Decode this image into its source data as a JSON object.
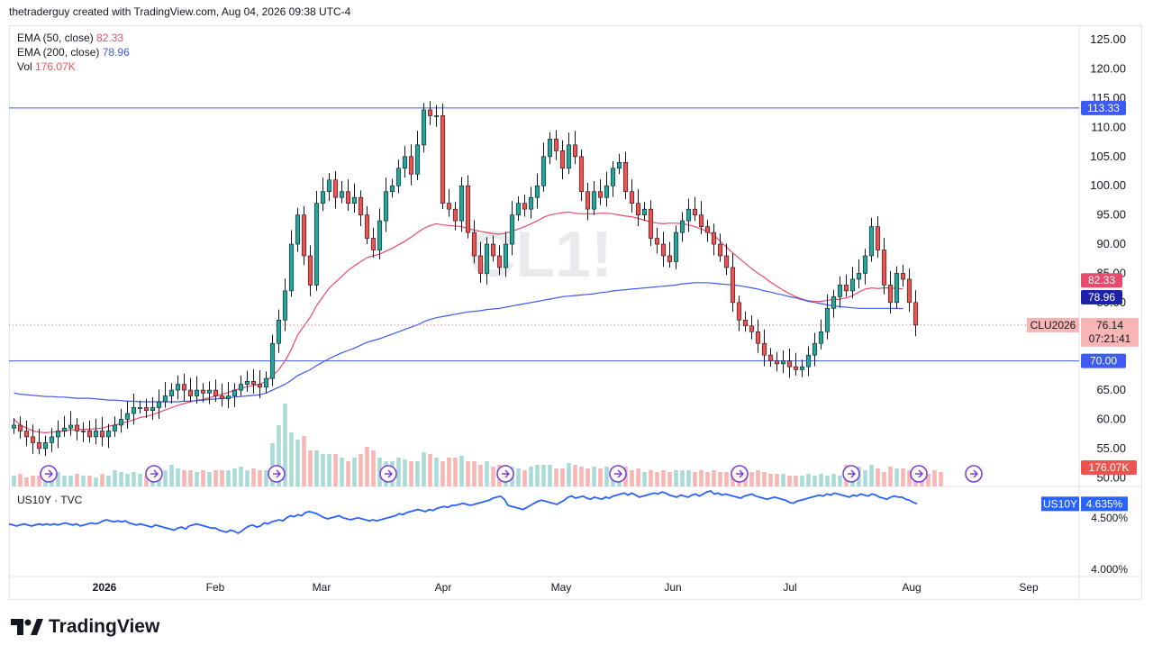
{
  "header": {
    "text": "thetraderguy created with TradingView.com, Aug 04, 2026 09:38 UTC-4"
  },
  "legend": {
    "ema50_label": "EMA (50, close)",
    "ema50_value": "82.33",
    "ema200_label": "EMA (200, close)",
    "ema200_value": "78.96",
    "vol_label": "Vol",
    "vol_value": "176.07K"
  },
  "watermark": "CL1!",
  "us10y_legend": "US10Y · TVC",
  "colors": {
    "up": "#26a69a",
    "down": "#ef5350",
    "ema50": "#e84b6d",
    "ema200": "#3d5af1",
    "hline": "#3d5af1",
    "us10y": "#2962ff"
  },
  "chart_data": [
    {
      "type": "candlestick",
      "symbol": "CLU2026",
      "price_axis_ticks": [
        "125.00",
        "120.00",
        "115.00",
        "110.00",
        "105.00",
        "100.00",
        "95.00",
        "90.00",
        "85.00",
        "80.00",
        "75.00",
        "70.00",
        "65.00",
        "60.00",
        "55.00",
        "50.00"
      ],
      "ylim": [
        48.5,
        127.5
      ],
      "time_axis_labels": [
        "2026",
        "Feb",
        "Mar",
        "Apr",
        "May",
        "Jun",
        "Jul",
        "Aug",
        "Sep"
      ],
      "horizontal_lines": [
        113.33,
        70.0
      ],
      "price_labels": {
        "hline_top": "113.33",
        "hline_bottom": "70.00",
        "ema50": "82.33",
        "ema200": "78.96",
        "last_symbol": "CLU2026",
        "last_price": "76.14",
        "countdown": "07:21:41",
        "volume": "176.07K"
      },
      "last_price": 76.14,
      "closes": [
        59,
        58,
        57,
        56,
        55,
        56,
        57,
        58,
        58.5,
        59,
        58,
        58,
        57,
        58,
        57,
        58,
        59,
        60,
        61,
        62,
        62,
        61.5,
        62,
        63,
        64,
        65,
        66,
        65,
        64,
        65,
        64.5,
        65,
        64,
        63.5,
        64,
        65,
        66,
        66.5,
        66,
        65.5,
        67,
        73,
        77,
        82,
        90,
        95,
        88,
        83,
        97,
        99,
        101,
        98,
        99,
        97,
        98,
        95,
        91,
        89,
        94,
        99,
        100,
        103,
        105,
        102,
        107,
        113,
        112,
        112,
        97,
        96,
        94,
        100,
        92,
        88,
        85,
        90,
        88,
        86,
        90,
        95,
        97,
        96,
        98,
        100,
        105,
        108,
        106,
        103,
        107,
        105,
        99,
        96,
        99,
        98,
        100,
        103,
        104,
        99,
        97,
        95,
        96,
        91,
        90,
        88,
        87,
        92,
        94,
        96,
        95,
        93,
        92,
        90,
        88,
        86,
        80,
        77,
        76,
        75,
        73,
        71,
        70,
        69.5,
        70,
        69,
        68.5,
        69,
        71,
        73,
        75,
        79,
        81,
        83,
        82,
        84,
        85,
        88,
        93,
        89,
        83,
        80,
        85,
        84,
        80,
        76.14
      ],
      "ema50": [
        60,
        59,
        58.5,
        58,
        57.8,
        57.7,
        57.8,
        57.9,
        58,
        58.2,
        58.2,
        58.3,
        58.3,
        58.4,
        58.5,
        58.8,
        59,
        59.3,
        59.6,
        59.9,
        60.3,
        60.5,
        60.8,
        61.2,
        61.6,
        62,
        62.4,
        62.7,
        63,
        63.3,
        63.4,
        63.7,
        64,
        64.3,
        64.6,
        65,
        65.3,
        65.6,
        65.8,
        66,
        66.5,
        67.5,
        68.5,
        70,
        72,
        74.5,
        76,
        77.5,
        79.5,
        81,
        82.5,
        83.5,
        84.5,
        85.5,
        86.3,
        87,
        87.7,
        88,
        88.3,
        88.8,
        89.3,
        89.9,
        90.5,
        91.2,
        92,
        92.7,
        93.2,
        93.5,
        93.3,
        93.2,
        93.1,
        93,
        92.7,
        92.4,
        92.2,
        92,
        91.8,
        91.7,
        91.9,
        92.2,
        92.6,
        93,
        93.5,
        94,
        94.6,
        95,
        95.2,
        95.4,
        95.5,
        95.3,
        95.2,
        95.2,
        95.2,
        95.3,
        95.3,
        95.2,
        95,
        94.8,
        94.7,
        94.4,
        94.1,
        93.8,
        93.6,
        93.5,
        93.6,
        93.6,
        93.5,
        93.3,
        93,
        92.6,
        92.2,
        91.5,
        90.5,
        89.5,
        88.5,
        87.6,
        86.7,
        85.8,
        85,
        84.3,
        83.5,
        82.8,
        82.1,
        81.5,
        81,
        80.6,
        80.3,
        80.2,
        80.2,
        80.4,
        80.5,
        80.6,
        80.8,
        81.2,
        81.8,
        82.3,
        82.5,
        82.4,
        82.5,
        82.5,
        82.4,
        82.33
      ],
      "ema200": [
        64.5,
        64.3,
        64.2,
        64.1,
        64,
        63.9,
        63.9,
        63.8,
        63.8,
        63.7,
        63.6,
        63.6,
        63.6,
        63.5,
        63.4,
        63.3,
        63.3,
        63.2,
        63.1,
        63.1,
        63,
        63,
        63,
        63,
        63,
        63,
        63,
        63.1,
        63.1,
        63.2,
        63.3,
        63.4,
        63.5,
        63.6,
        63.7,
        63.8,
        63.9,
        64,
        64.1,
        64.2,
        64.5,
        65,
        65.5,
        66,
        66.7,
        67.5,
        68,
        68.5,
        69.2,
        69.8,
        70.4,
        70.9,
        71.4,
        71.8,
        72.2,
        72.7,
        73.2,
        73.5,
        73.8,
        74.2,
        74.6,
        75,
        75.4,
        75.8,
        76.2,
        76.7,
        77.1,
        77.4,
        77.6,
        77.8,
        78,
        78.2,
        78.4,
        78.5,
        78.6,
        78.8,
        78.9,
        79,
        79.2,
        79.4,
        79.6,
        79.8,
        80,
        80.2,
        80.4,
        80.6,
        80.8,
        81,
        81.1,
        81.2,
        81.3,
        81.4,
        81.5,
        81.7,
        81.8,
        82,
        82.1,
        82.2,
        82.3,
        82.4,
        82.5,
        82.6,
        82.7,
        82.8,
        82.9,
        83,
        83.2,
        83.3,
        83.4,
        83.4,
        83.4,
        83.3,
        83.2,
        83.1,
        83,
        82.9,
        82.7,
        82.5,
        82.3,
        82,
        81.8,
        81.5,
        81.3,
        81,
        80.8,
        80.5,
        80.2,
        80,
        79.8,
        79.6,
        79.4,
        79.3,
        79.2,
        79.1,
        79,
        79,
        79,
        79,
        79,
        79,
        79,
        78.96
      ],
      "volume_relative": [
        0.3,
        0.35,
        0.25,
        0.3,
        0.3,
        0.25,
        0.35,
        0.4,
        0.3,
        0.3,
        0.35,
        0.3,
        0.3,
        0.25,
        0.35,
        0.3,
        0.45,
        0.4,
        0.35,
        0.4,
        0.35,
        0.3,
        0.3,
        0.4,
        0.45,
        0.6,
        0.5,
        0.45,
        0.45,
        0.4,
        0.45,
        0.4,
        0.45,
        0.45,
        0.45,
        0.5,
        0.55,
        0.45,
        0.5,
        0.45,
        0.45,
        1.2,
        1.7,
        2.3,
        1.5,
        1.3,
        1.4,
        1.0,
        1.0,
        0.9,
        0.9,
        0.9,
        0.8,
        0.7,
        0.8,
        0.9,
        1.1,
        1.0,
        0.8,
        0.7,
        0.7,
        0.8,
        0.75,
        0.7,
        0.7,
        0.95,
        0.9,
        0.8,
        0.7,
        0.8,
        0.8,
        0.85,
        0.7,
        0.7,
        0.6,
        0.7,
        0.55,
        0.6,
        0.6,
        0.55,
        0.5,
        0.45,
        0.55,
        0.6,
        0.6,
        0.6,
        0.5,
        0.5,
        0.65,
        0.6,
        0.55,
        0.5,
        0.55,
        0.5,
        0.55,
        0.5,
        0.5,
        0.55,
        0.45,
        0.5,
        0.4,
        0.45,
        0.4,
        0.45,
        0.4,
        0.45,
        0.45,
        0.45,
        0.4,
        0.45,
        0.4,
        0.45,
        0.4,
        0.4,
        0.45,
        0.4,
        0.4,
        0.4,
        0.45,
        0.4,
        0.35,
        0.35,
        0.35,
        0.3,
        0.3,
        0.3,
        0.35,
        0.3,
        0.35,
        0.3,
        0.35,
        0.3,
        0.6,
        0.5,
        0.55,
        0.45,
        0.6,
        0.5,
        0.4,
        0.55,
        0.5,
        0.5,
        0.45,
        0.5,
        0.4,
        0.35,
        0.45,
        0.4
      ]
    },
    {
      "type": "line",
      "symbol": "US10Y",
      "price_axis_ticks": [
        "4.500%",
        "4.000%"
      ],
      "ylim": [
        3.93,
        4.76
      ],
      "last_value_label": "4.635%",
      "values": [
        4.44,
        4.43,
        4.42,
        4.43,
        4.44,
        4.43,
        4.42,
        4.43,
        4.44,
        4.43,
        4.44,
        4.43,
        4.44,
        4.43,
        4.44,
        4.45,
        4.44,
        4.43,
        4.44,
        4.42,
        4.43,
        4.44,
        4.45,
        4.44,
        4.45,
        4.47,
        4.48,
        4.47,
        4.46,
        4.47,
        4.46,
        4.47,
        4.45,
        4.44,
        4.43,
        4.44,
        4.43,
        4.42,
        4.41,
        4.43,
        4.42,
        4.41,
        4.4,
        4.39,
        4.38,
        4.4,
        4.41,
        4.39,
        4.42,
        4.43,
        4.44,
        4.43,
        4.42,
        4.41,
        4.4,
        4.4,
        4.38,
        4.37,
        4.36,
        4.38,
        4.37,
        4.35,
        4.37,
        4.4,
        4.42,
        4.43,
        4.41,
        4.42,
        4.45,
        4.44,
        4.46,
        4.47,
        4.48,
        4.47,
        4.5,
        4.52,
        4.51,
        4.53,
        4.52,
        4.55,
        4.56,
        4.55,
        4.54,
        4.52,
        4.5,
        4.49,
        4.5,
        4.51,
        4.52,
        4.5,
        4.49,
        4.48,
        4.49,
        4.5,
        4.49,
        4.48,
        4.47,
        4.48,
        4.47,
        4.48,
        4.49,
        4.5,
        4.51,
        4.52,
        4.54,
        4.53,
        4.55,
        4.56,
        4.57,
        4.58,
        4.57,
        4.56,
        4.58,
        4.57,
        4.59,
        4.6,
        4.61,
        4.6,
        4.62,
        4.62,
        4.63,
        4.64,
        4.63,
        4.62,
        4.63,
        4.64,
        4.65,
        4.66,
        4.67,
        4.69,
        4.7,
        4.71,
        4.68,
        4.62,
        4.61,
        4.6,
        4.59,
        4.58,
        4.6,
        4.62,
        4.64,
        4.66,
        4.67,
        4.66,
        4.65,
        4.64,
        4.63,
        4.65,
        4.67,
        4.7,
        4.71,
        4.69,
        4.7,
        4.71,
        4.69,
        4.68,
        4.7,
        4.69,
        4.68,
        4.7,
        4.69,
        4.71,
        4.72,
        4.73,
        4.74,
        4.72,
        4.74,
        4.72,
        4.7,
        4.71,
        4.72,
        4.73,
        4.74,
        4.73,
        4.75,
        4.74,
        4.72,
        4.71,
        4.7,
        4.72,
        4.71,
        4.7,
        4.72,
        4.73,
        4.71,
        4.73,
        4.75,
        4.76,
        4.73,
        4.74,
        4.72,
        4.73,
        4.72,
        4.71,
        4.7,
        4.69,
        4.71,
        4.72,
        4.73,
        4.71,
        4.7,
        4.69,
        4.68,
        4.69,
        4.7,
        4.69,
        4.68,
        4.67,
        4.65,
        4.64,
        4.66,
        4.67,
        4.68,
        4.69,
        4.7,
        4.71,
        4.72,
        4.71,
        4.73,
        4.72,
        4.74,
        4.73,
        4.72,
        4.71,
        4.7,
        4.72,
        4.71,
        4.73,
        4.72,
        4.71,
        4.73,
        4.72,
        4.7,
        4.69,
        4.68,
        4.7,
        4.71,
        4.7,
        4.7,
        4.68,
        4.67,
        4.65,
        4.635
      ]
    }
  ],
  "footer": {
    "logo_text": "TradingView"
  }
}
